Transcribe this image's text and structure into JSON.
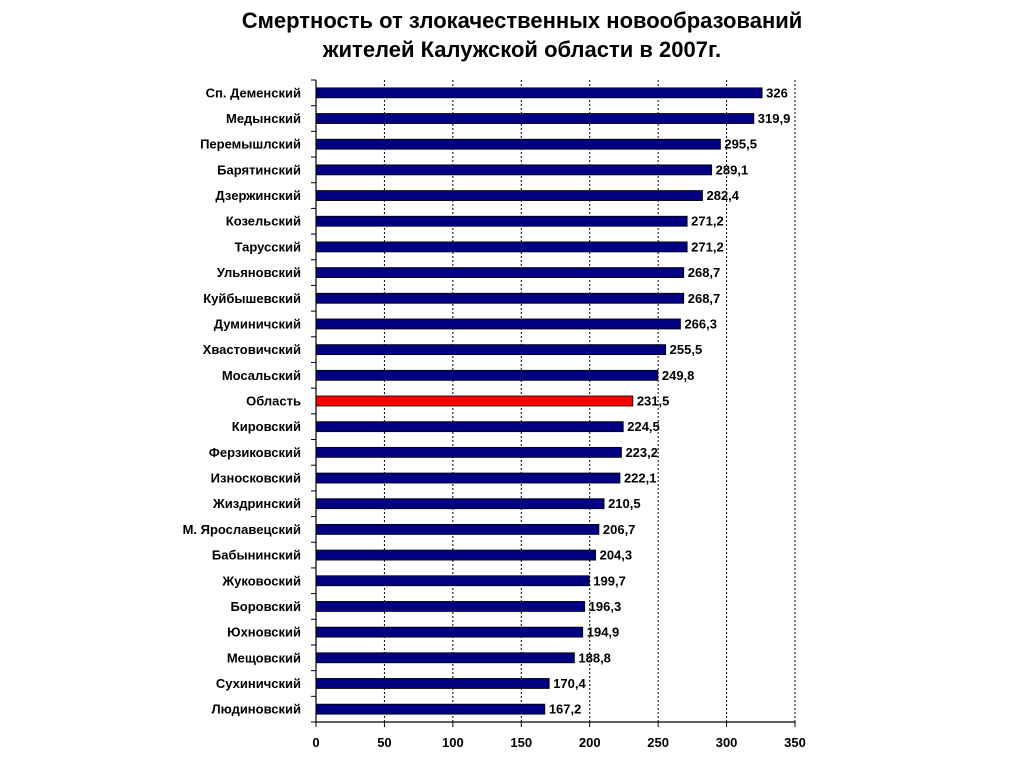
{
  "title_lines": [
    "Смертность от злокачественных новообразований",
    "жителей Калужской области в 2007г."
  ],
  "colors": {
    "bar": "#000080",
    "highlight": "#ff0000"
  },
  "chart_data": {
    "type": "bar",
    "orientation": "horizontal",
    "title": "Смертность от злокачественных новообразований жителей Калужской области в 2007г.",
    "categories": [
      "Сп. Деменский",
      "Медынский",
      "Перемышлский",
      "Барятинский",
      "Дзержинский",
      "Козельский",
      "Тарусский",
      "Ульяновский",
      "Куйбышевский",
      "Думиничский",
      "Хвастовичский",
      "Мосальский",
      "Область",
      "Кировский",
      "Ферзиковский",
      "Износковский",
      "Жиздринский",
      "М. Ярославецский",
      "Бабынинский",
      "Жуковоский",
      "Боровский",
      "Юхновский",
      "Мещовский",
      "Сухиничский",
      "Людиновский"
    ],
    "values": [
      326,
      319.9,
      295.5,
      289.1,
      282.4,
      271.2,
      271.2,
      268.7,
      268.7,
      266.3,
      255.5,
      249.8,
      231.5,
      224.5,
      223.2,
      222.1,
      210.5,
      206.7,
      204.3,
      199.7,
      196.3,
      194.9,
      188.8,
      170.4,
      167.2
    ],
    "value_labels": [
      "326",
      "319,9",
      "295,5",
      "289,1",
      "282,4",
      "271,2",
      "271,2",
      "268,7",
      "268,7",
      "266,3",
      "255,5",
      "249,8",
      "231,5",
      "224,5",
      "223,2",
      "222,1",
      "210,5",
      "206,7",
      "204,3",
      "199,7",
      "196,3",
      "194,9",
      "188,8",
      "170,4",
      "167,2"
    ],
    "highlight_category": "Область",
    "xlim": [
      0,
      350
    ],
    "xticks": [
      0,
      50,
      100,
      150,
      200,
      250,
      300,
      350
    ],
    "grid": "vertical dashed",
    "legend": "none"
  }
}
